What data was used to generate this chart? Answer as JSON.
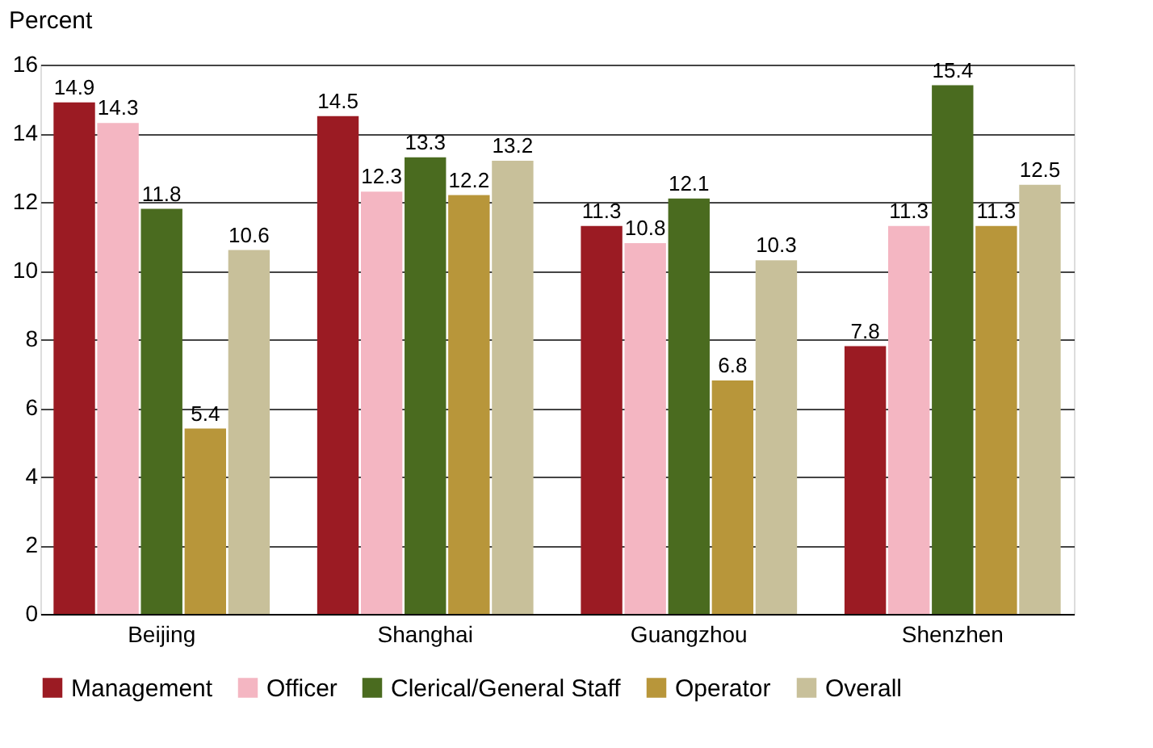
{
  "chart_data": {
    "type": "bar",
    "ylabel": "Percent",
    "categories": [
      "Beijing",
      "Shanghai",
      "Guangzhou",
      "Shenzhen"
    ],
    "series": [
      {
        "name": "Management",
        "color": "#9b1b23",
        "values": [
          14.9,
          14.5,
          11.3,
          7.8
        ]
      },
      {
        "name": "Officer",
        "color": "#f4b6c2",
        "values": [
          14.3,
          12.3,
          10.8,
          11.3
        ]
      },
      {
        "name": "Clerical/General Staff",
        "color": "#4a6b1f",
        "values": [
          11.8,
          13.3,
          12.1,
          15.4
        ]
      },
      {
        "name": "Operator",
        "color": "#b8963a",
        "values": [
          5.4,
          12.2,
          6.8,
          11.3
        ]
      },
      {
        "name": "Overall",
        "color": "#c8c09a",
        "values": [
          10.6,
          13.2,
          10.3,
          12.5
        ]
      }
    ],
    "ylim": [
      0,
      16
    ],
    "yticks": [
      0,
      2,
      4,
      6,
      8,
      10,
      12,
      14,
      16
    ],
    "grid": "y",
    "legend": "bottom",
    "data_labels": true
  }
}
